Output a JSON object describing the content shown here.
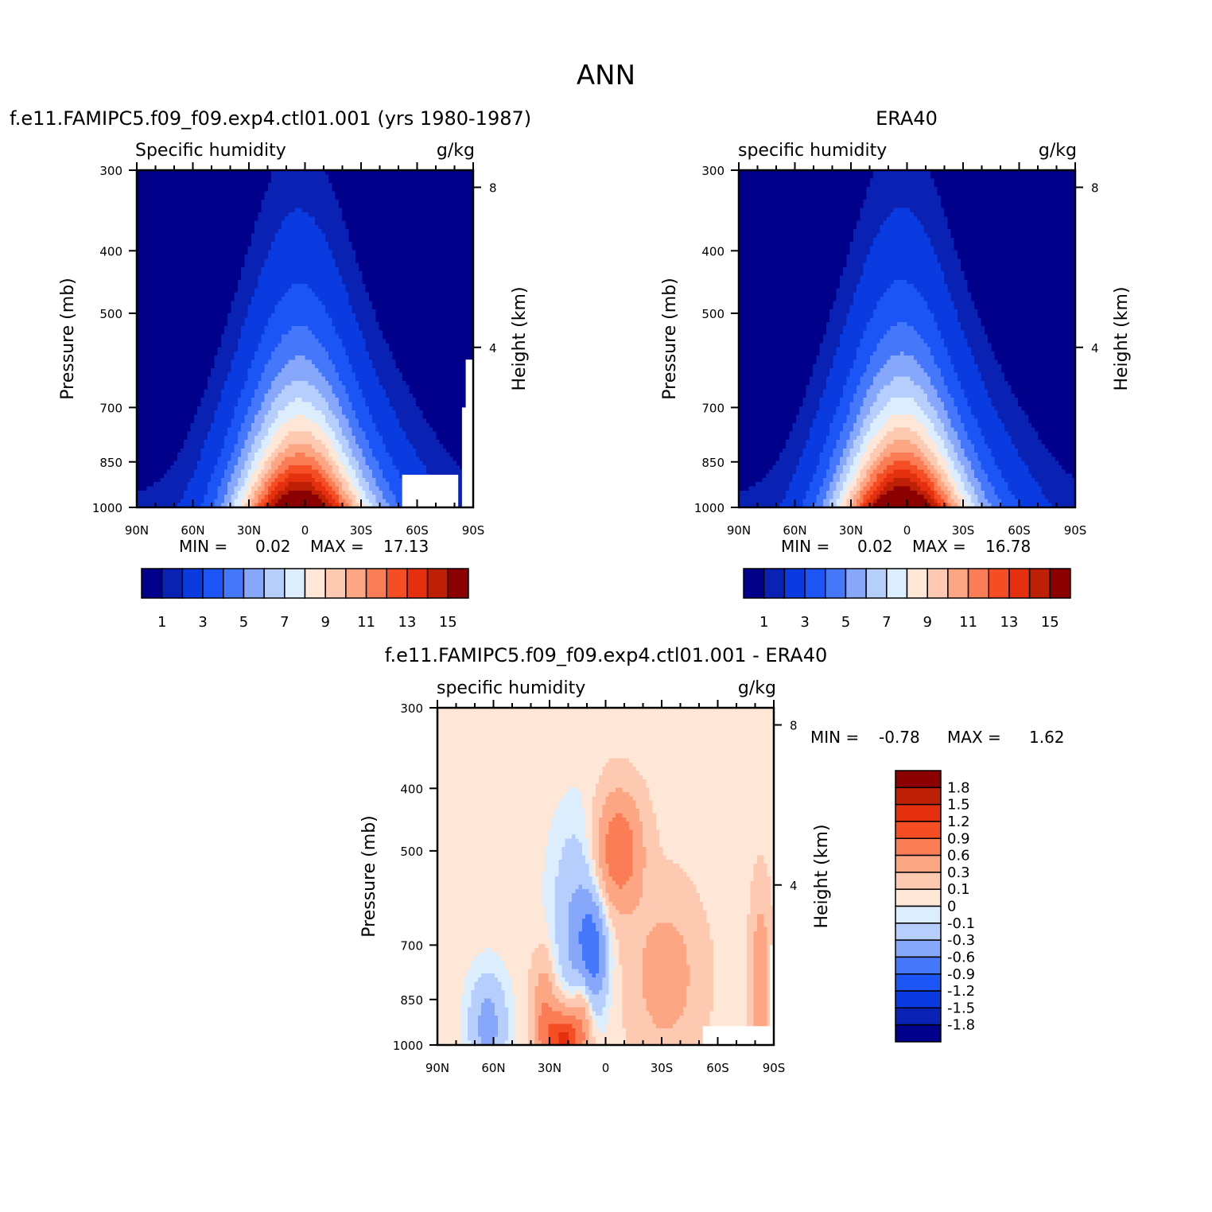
{
  "figure": {
    "title": "ANN"
  },
  "palette": {
    "sh": [
      "#00008b",
      "#0a22b4",
      "#0a3be0",
      "#1b55f6",
      "#4477fa",
      "#86a7fa",
      "#b6cefc",
      "#dceefe",
      "#fee7d6",
      "#fdc9b0",
      "#fca683",
      "#fb7d56",
      "#f54d24",
      "#e4300e",
      "#bd2005",
      "#8b0000"
    ],
    "diff": [
      "#00008b",
      "#0a22b4",
      "#0a3be0",
      "#1b55f6",
      "#4477fa",
      "#86a7fa",
      "#b6cefc",
      "#dceefe",
      "#fee7d6",
      "#fdc9b0",
      "#fca683",
      "#fb7d56",
      "#f54d24",
      "#e4300e",
      "#bd2005",
      "#8b0000"
    ]
  },
  "chart_data": [
    {
      "type": "heatmap",
      "panel": "model",
      "title": "f.e11.FAMIPC5.f09_f09.exp4.ctl01.001 (yrs 1980-1987)",
      "variable": "Specific humidity",
      "units": "g/kg",
      "ylabel": "Pressure (mb)",
      "y2label": "Height (km)",
      "x_ticks": [
        "90N",
        "60N",
        "30N",
        "0",
        "30S",
        "60S",
        "90S"
      ],
      "x_tick_values": [
        90,
        60,
        30,
        0,
        -30,
        -60,
        -90
      ],
      "y_ticks": [
        300,
        400,
        500,
        700,
        850,
        1000
      ],
      "y2_ticks": [
        8,
        4
      ],
      "xlim": [
        90,
        -90
      ],
      "ylim": [
        300,
        1000
      ],
      "y_scale": "log",
      "min": "0.02",
      "max": "17.13",
      "min_label": "MIN =",
      "max_label": "MAX =",
      "levels": [
        0.5,
        1,
        2,
        3,
        4,
        5,
        6,
        7,
        8,
        9,
        10,
        11,
        12,
        13,
        14
      ],
      "colorbar_labels": [
        "1",
        "3",
        "5",
        "7",
        "9",
        "11",
        "13",
        "15"
      ],
      "grid": false,
      "legend_position": "bottom"
    },
    {
      "type": "heatmap",
      "panel": "obs",
      "title": "ERA40",
      "variable": "specific humidity",
      "units": "g/kg",
      "ylabel": "Pressure (mb)",
      "y2label": "Height (km)",
      "x_ticks": [
        "90N",
        "60N",
        "30N",
        "0",
        "30S",
        "60S",
        "90S"
      ],
      "x_tick_values": [
        90,
        60,
        30,
        0,
        -30,
        -60,
        -90
      ],
      "y_ticks": [
        300,
        400,
        500,
        700,
        850,
        1000
      ],
      "y2_ticks": [
        8,
        4
      ],
      "xlim": [
        90,
        -90
      ],
      "ylim": [
        300,
        1000
      ],
      "y_scale": "log",
      "min": "0.02",
      "max": "16.78",
      "min_label": "MIN =",
      "max_label": "MAX =",
      "levels": [
        0.5,
        1,
        2,
        3,
        4,
        5,
        6,
        7,
        8,
        9,
        10,
        11,
        12,
        13,
        14
      ],
      "colorbar_labels": [
        "1",
        "3",
        "5",
        "7",
        "9",
        "11",
        "13",
        "15"
      ],
      "grid": false,
      "legend_position": "bottom"
    },
    {
      "type": "heatmap",
      "panel": "difference",
      "title": "f.e11.FAMIPC5.f09_f09.exp4.ctl01.001 - ERA40",
      "variable": "specific humidity",
      "units": "g/kg",
      "ylabel": "Pressure (mb)",
      "y2label": "Height (km)",
      "x_ticks": [
        "90N",
        "60N",
        "30N",
        "0",
        "30S",
        "60S",
        "90S"
      ],
      "x_tick_values": [
        90,
        60,
        30,
        0,
        -30,
        -60,
        -90
      ],
      "y_ticks": [
        300,
        400,
        500,
        700,
        850,
        1000
      ],
      "y2_ticks": [
        8,
        4
      ],
      "xlim": [
        90,
        -90
      ],
      "ylim": [
        300,
        1000
      ],
      "y_scale": "log",
      "min": "-0.78",
      "max": "1.62",
      "min_label": "MIN =",
      "max_label": "MAX =",
      "levels": [
        -1.8,
        -1.5,
        -1.2,
        -0.9,
        -0.6,
        -0.3,
        -0.1,
        0,
        0.1,
        0.3,
        0.6,
        0.9,
        1.2,
        1.5,
        1.8
      ],
      "colorbar_labels": [
        "1.8",
        "1.5",
        "1.2",
        "0.9",
        "0.6",
        "0.3",
        "0.1",
        "0",
        "-0.1",
        "-0.3",
        "-0.6",
        "-0.9",
        "-1.2",
        "-1.5",
        "-1.8"
      ],
      "grid": false,
      "legend_position": "right"
    }
  ]
}
